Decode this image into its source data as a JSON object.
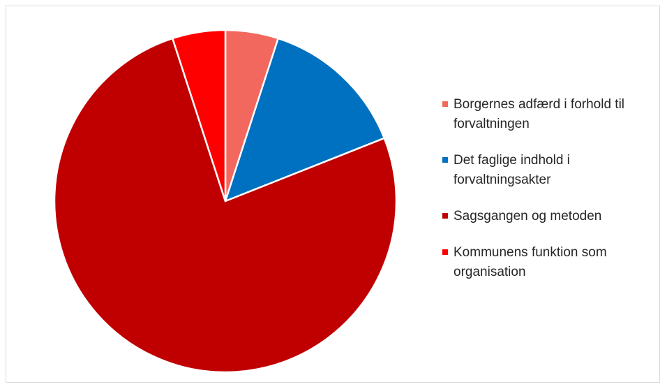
{
  "chart_data": {
    "type": "pie",
    "categories": [
      "Borgernes adfærd i forhold til forvaltningen",
      "Det faglige indhold i forvaltningsakter",
      "Sagsgangen og metoden",
      "Kommunens funktion som organisation"
    ],
    "values": [
      5,
      14,
      76,
      5
    ],
    "colors": [
      "#f2685e",
      "#0070c0",
      "#c00000",
      "#ff0000"
    ],
    "legend": "right"
  }
}
